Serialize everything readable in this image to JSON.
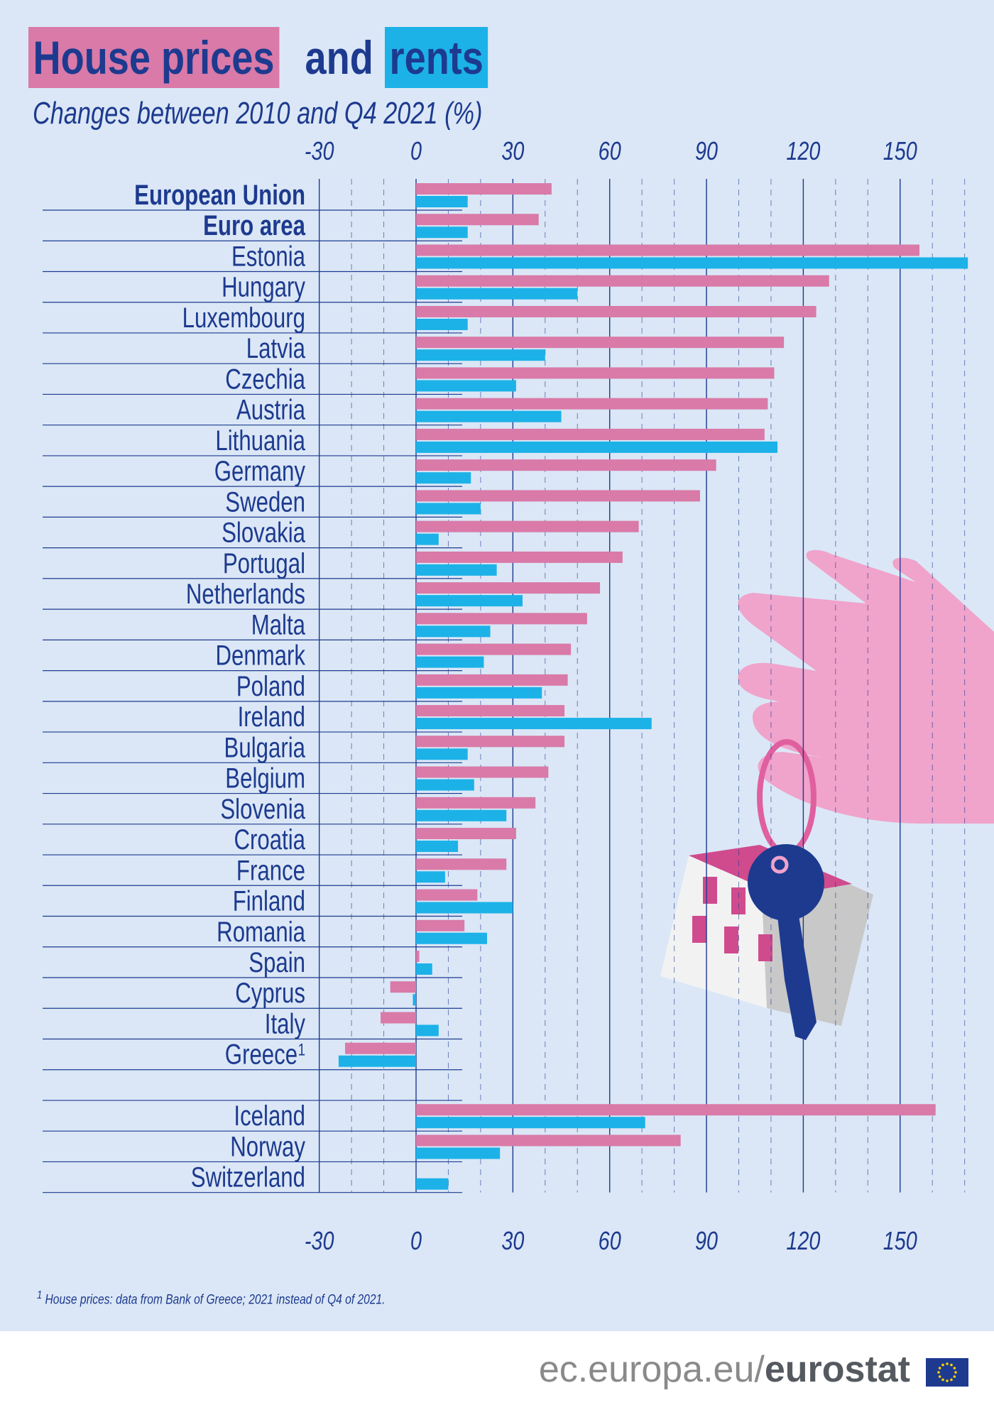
{
  "title": {
    "part1": "House prices",
    "part2": "and",
    "part3": "rents"
  },
  "subtitle": "Changes between 2010 and Q4 2021 (%)",
  "footnote": {
    "marker": "1",
    "text": "House prices: data from Bank of Greece; 2021 instead of Q4 of 2021."
  },
  "footer": {
    "site": "ec.europa.eu/",
    "brand": "eurostat"
  },
  "chart_data": {
    "type": "bar",
    "orientation": "horizontal",
    "xlim": [
      -30,
      170
    ],
    "ticks": [
      -30,
      0,
      30,
      60,
      90,
      120,
      150
    ],
    "grid": true,
    "colors": {
      "house_prices": "#d97aa8",
      "rents": "#1cb2e8",
      "text": "#1d3a8f"
    },
    "categories": [
      "European Union",
      "Euro area",
      "Estonia",
      "Hungary",
      "Luxembourg",
      "Latvia",
      "Czechia",
      "Austria",
      "Lithuania",
      "Germany",
      "Sweden",
      "Slovakia",
      "Portugal",
      "Netherlands",
      "Malta",
      "Denmark",
      "Poland",
      "Ireland",
      "Bulgaria",
      "Belgium",
      "Slovenia",
      "Croatia",
      "France",
      "Finland",
      "Romania",
      "Spain",
      "Cyprus",
      "Italy",
      "Greece",
      "",
      "Iceland",
      "Norway",
      "Switzerland"
    ],
    "category_notes": {
      "Greece": "1"
    },
    "bold_categories": [
      "European Union",
      "Euro area"
    ],
    "series": [
      {
        "key": "house_prices",
        "values": [
          42,
          38,
          156,
          128,
          124,
          114,
          111,
          109,
          108,
          93,
          88,
          69,
          64,
          57,
          53,
          48,
          47,
          46,
          46,
          41,
          37,
          31,
          28,
          19,
          15,
          1,
          -8,
          -11,
          -22,
          null,
          161,
          82,
          null
        ]
      },
      {
        "key": "rents",
        "values": [
          16,
          16,
          171,
          50,
          16,
          40,
          31,
          45,
          112,
          17,
          20,
          7,
          25,
          33,
          23,
          21,
          39,
          73,
          16,
          18,
          28,
          13,
          9,
          30,
          22,
          5,
          -1,
          7,
          -24,
          null,
          71,
          26,
          10
        ]
      }
    ]
  }
}
